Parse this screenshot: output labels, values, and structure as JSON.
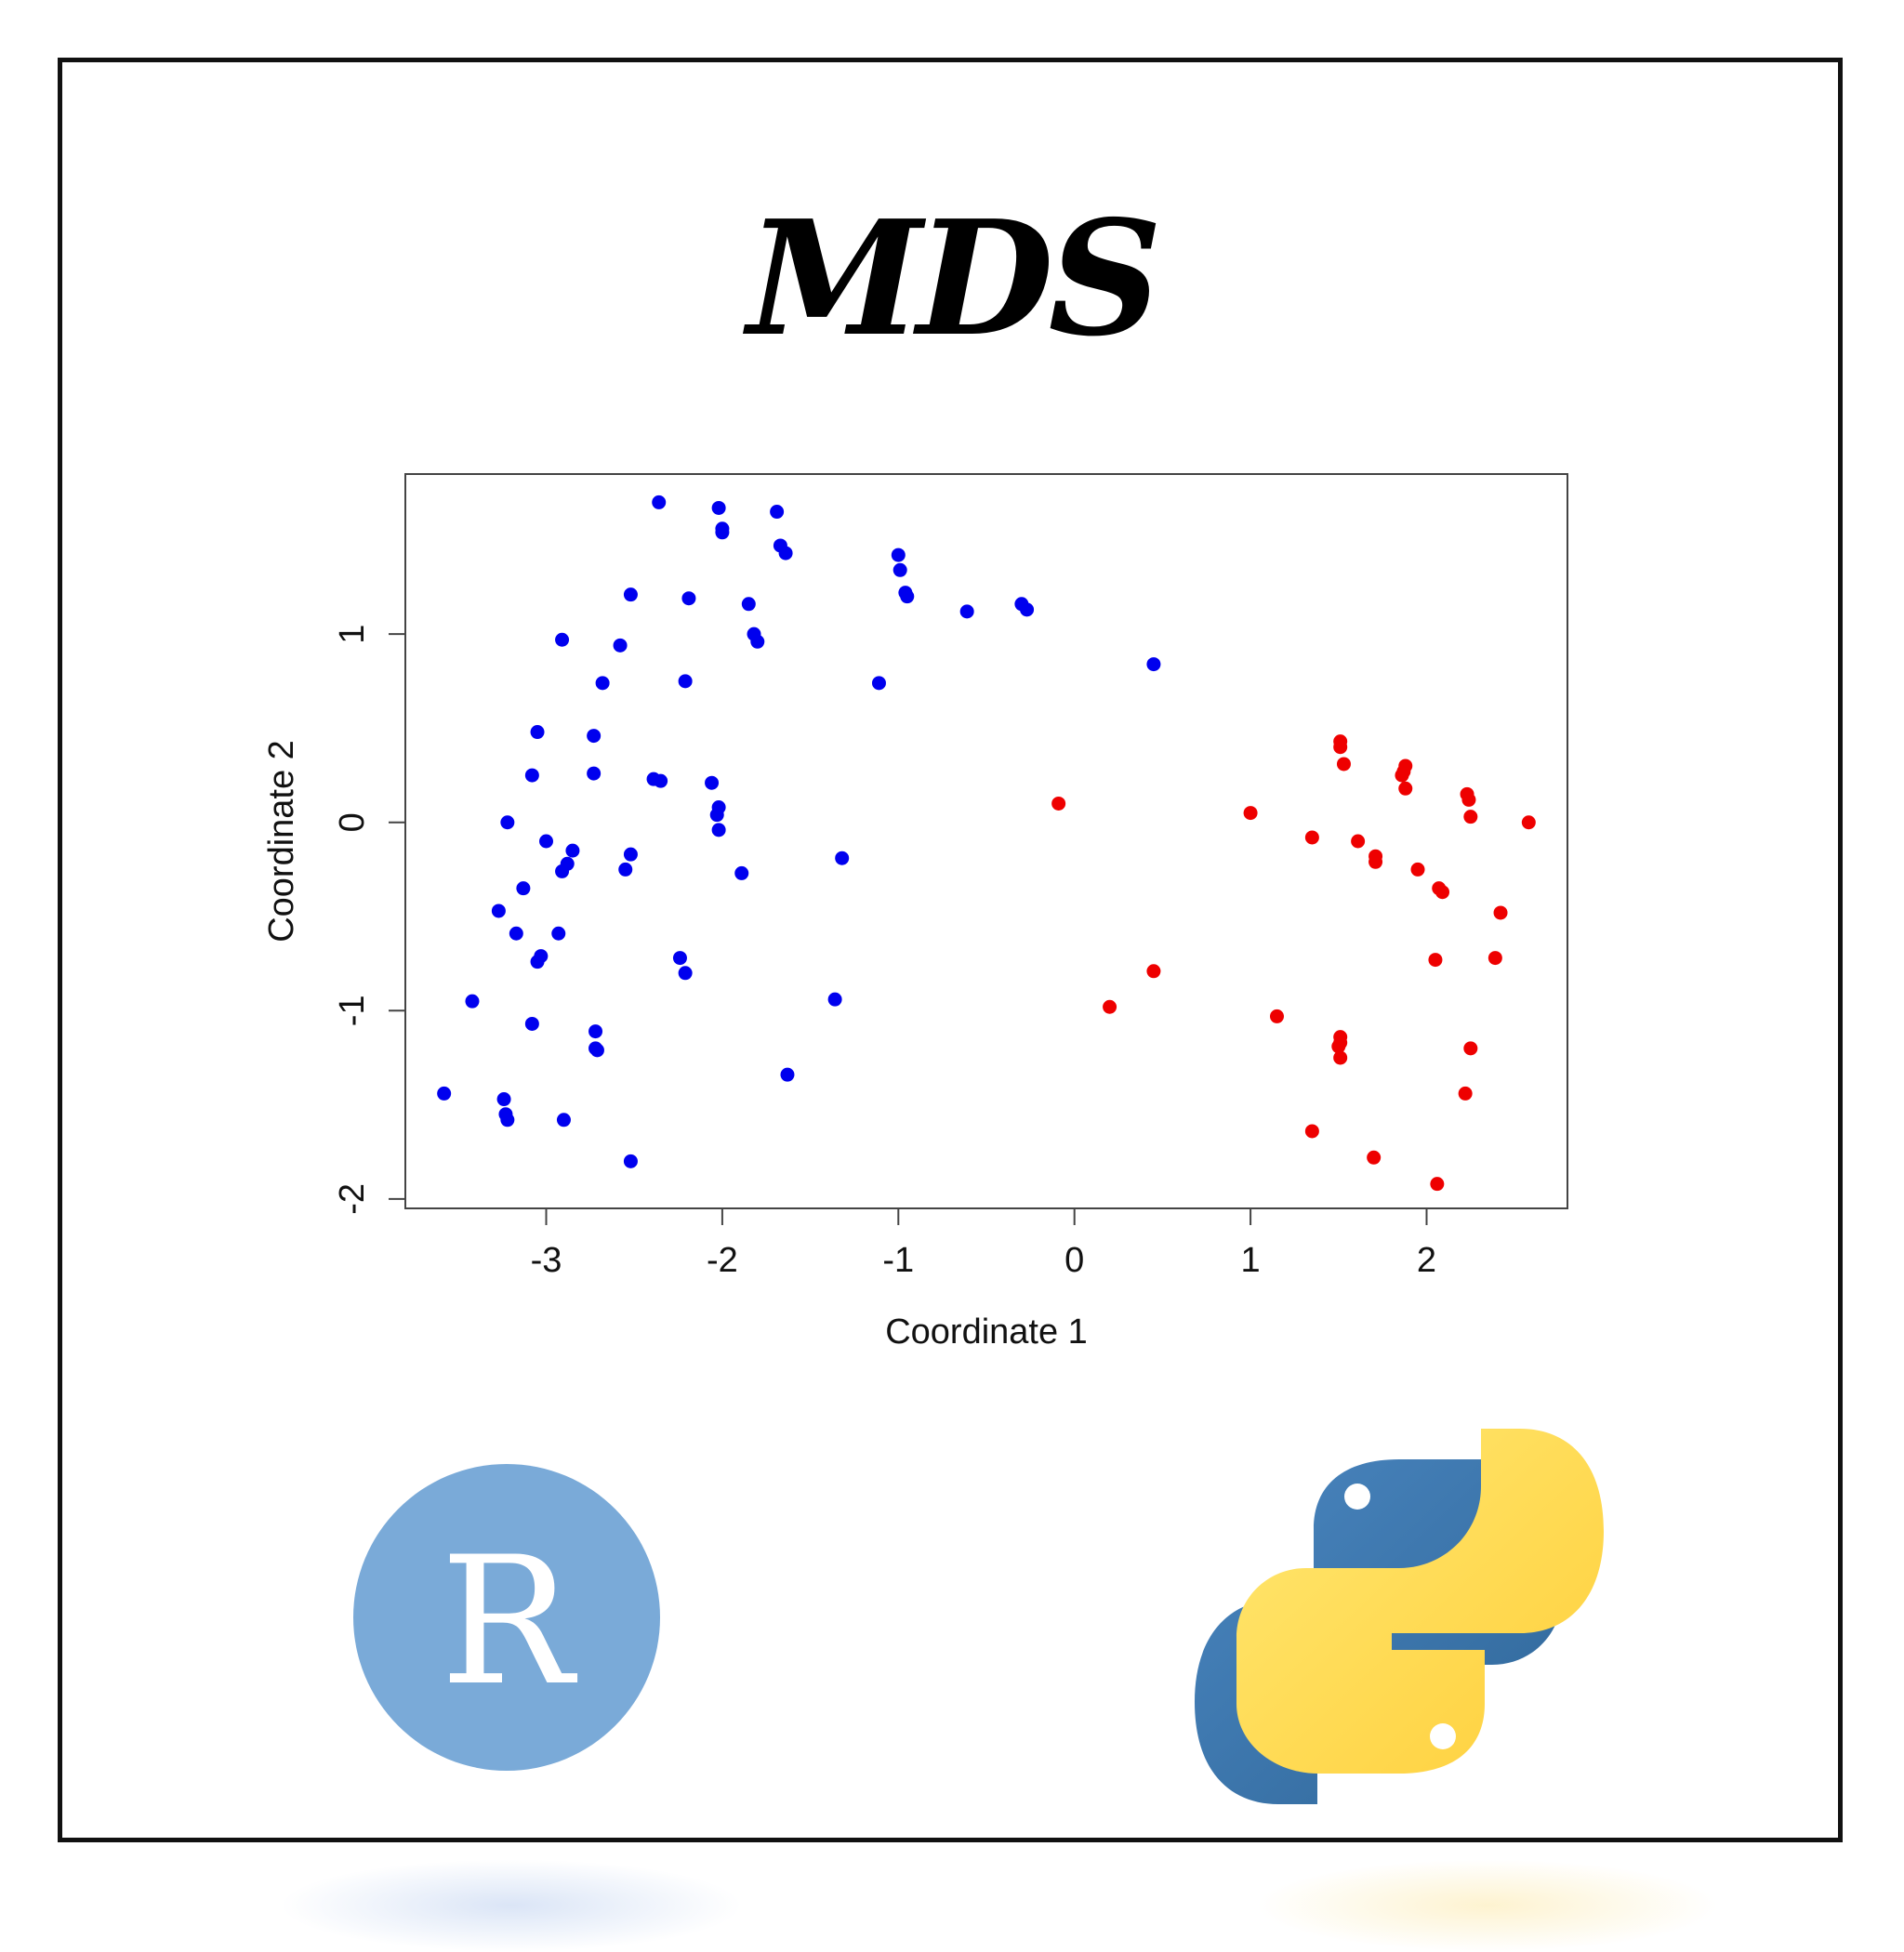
{
  "title": "MDS",
  "logos": {
    "left": "R",
    "left_icon": "r-logo-icon",
    "right_icon": "python-logo-icon",
    "colors": {
      "r_circle": "#7aaad8",
      "python_blue": "#3a73a8",
      "python_yellow": "#ffd343"
    }
  },
  "chart_data": {
    "type": "scatter",
    "xlabel": "Coordinate 1",
    "ylabel": "Coordinate 2",
    "xlim": [
      -3.8,
      2.8
    ],
    "ylim": [
      -2.05,
      1.85
    ],
    "xticks": [
      -3,
      -2,
      -1,
      0,
      1,
      2
    ],
    "yticks": [
      -2,
      -1,
      0,
      1
    ],
    "grid": false,
    "series": [
      {
        "color": "#0000ee",
        "points": [
          [
            -2.36,
            1.7
          ],
          [
            -2.02,
            1.67
          ],
          [
            -2.0,
            1.56
          ],
          [
            -2.0,
            1.54
          ],
          [
            -1.69,
            1.65
          ],
          [
            -1.67,
            1.47
          ],
          [
            -1.64,
            1.43
          ],
          [
            -1.0,
            1.42
          ],
          [
            -0.99,
            1.34
          ],
          [
            -0.96,
            1.22
          ],
          [
            -0.95,
            1.2
          ],
          [
            -0.61,
            1.12
          ],
          [
            -0.3,
            1.16
          ],
          [
            -0.27,
            1.13
          ],
          [
            -2.52,
            1.21
          ],
          [
            -2.19,
            1.19
          ],
          [
            -1.85,
            1.16
          ],
          [
            -1.82,
            1.0
          ],
          [
            -1.8,
            0.96
          ],
          [
            -2.91,
            0.97
          ],
          [
            -2.58,
            0.94
          ],
          [
            -2.68,
            0.74
          ],
          [
            -2.21,
            0.75
          ],
          [
            -1.11,
            0.74
          ],
          [
            0.45,
            0.84
          ],
          [
            -3.05,
            0.48
          ],
          [
            -2.73,
            0.46
          ],
          [
            -3.08,
            0.25
          ],
          [
            -2.73,
            0.26
          ],
          [
            -2.39,
            0.23
          ],
          [
            -2.35,
            0.22
          ],
          [
            -2.06,
            0.21
          ],
          [
            -2.02,
            0.08
          ],
          [
            -2.03,
            0.04
          ],
          [
            -2.02,
            -0.04
          ],
          [
            -3.22,
            0.0
          ],
          [
            -3.0,
            -0.1
          ],
          [
            -2.85,
            -0.15
          ],
          [
            -2.88,
            -0.22
          ],
          [
            -2.91,
            -0.26
          ],
          [
            -2.52,
            -0.17
          ],
          [
            -2.55,
            -0.25
          ],
          [
            -1.89,
            -0.27
          ],
          [
            -1.32,
            -0.19
          ],
          [
            -3.13,
            -0.35
          ],
          [
            -3.27,
            -0.47
          ],
          [
            -3.17,
            -0.59
          ],
          [
            -2.93,
            -0.59
          ],
          [
            -3.03,
            -0.71
          ],
          [
            -3.05,
            -0.74
          ],
          [
            -2.24,
            -0.72
          ],
          [
            -2.21,
            -0.8
          ],
          [
            -3.42,
            -0.95
          ],
          [
            -1.36,
            -0.94
          ],
          [
            -3.08,
            -1.07
          ],
          [
            -2.72,
            -1.11
          ],
          [
            -2.72,
            -1.2
          ],
          [
            -2.71,
            -1.21
          ],
          [
            -1.63,
            -1.34
          ],
          [
            -3.58,
            -1.44
          ],
          [
            -3.24,
            -1.47
          ],
          [
            -3.23,
            -1.55
          ],
          [
            -3.22,
            -1.58
          ],
          [
            -2.9,
            -1.58
          ],
          [
            -2.52,
            -1.8
          ]
        ]
      },
      {
        "color": "#ee0000",
        "points": [
          [
            1.51,
            0.43
          ],
          [
            1.51,
            0.4
          ],
          [
            1.53,
            0.31
          ],
          [
            1.88,
            0.3
          ],
          [
            1.87,
            0.27
          ],
          [
            1.86,
            0.25
          ],
          [
            1.88,
            0.18
          ],
          [
            2.23,
            0.15
          ],
          [
            2.24,
            0.12
          ],
          [
            2.25,
            0.03
          ],
          [
            2.58,
            0.0
          ],
          [
            -0.09,
            0.1
          ],
          [
            1.0,
            0.05
          ],
          [
            1.35,
            -0.08
          ],
          [
            1.61,
            -0.1
          ],
          [
            1.71,
            -0.18
          ],
          [
            1.71,
            -0.21
          ],
          [
            1.95,
            -0.25
          ],
          [
            2.07,
            -0.35
          ],
          [
            2.09,
            -0.37
          ],
          [
            2.42,
            -0.48
          ],
          [
            2.39,
            -0.72
          ],
          [
            2.05,
            -0.73
          ],
          [
            0.45,
            -0.79
          ],
          [
            0.2,
            -0.98
          ],
          [
            1.15,
            -1.03
          ],
          [
            1.51,
            -1.14
          ],
          [
            1.51,
            -1.17
          ],
          [
            1.5,
            -1.19
          ],
          [
            1.51,
            -1.25
          ],
          [
            2.25,
            -1.2
          ],
          [
            2.22,
            -1.44
          ],
          [
            1.35,
            -1.64
          ],
          [
            1.7,
            -1.78
          ],
          [
            2.06,
            -1.92
          ]
        ]
      }
    ]
  }
}
